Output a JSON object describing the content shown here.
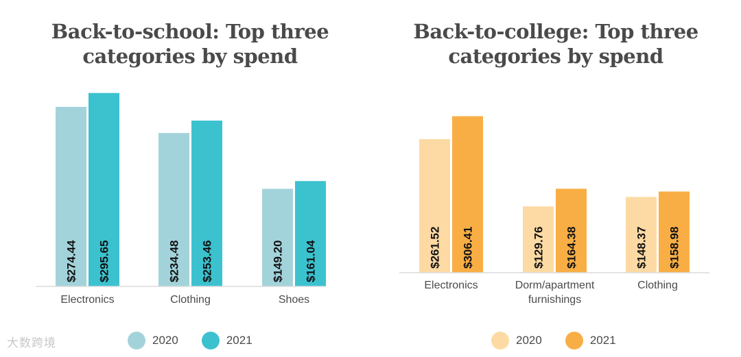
{
  "watermark": "大数跨境",
  "chart_data": [
    {
      "type": "bar",
      "title": "Back-to-school: Top three categories by spend",
      "categories": [
        "Electronics",
        "Clothing",
        "Shoes"
      ],
      "series": [
        {
          "name": "2020",
          "values": [
            274.44,
            234.48,
            149.2
          ],
          "labels": [
            "$274.44",
            "$234.48",
            "$149.20"
          ],
          "color": "#a3d3da"
        },
        {
          "name": "2021",
          "values": [
            295.65,
            253.46,
            161.04
          ],
          "labels": [
            "$295.65",
            "$253.46",
            "$161.04"
          ],
          "color": "#3cc2cf"
        }
      ],
      "ylim": [
        0,
        310
      ],
      "xlabel": "",
      "ylabel": "",
      "grid": false,
      "legend": "bottom"
    },
    {
      "type": "bar",
      "title": "Back-to-college: Top three categories by spend",
      "categories": [
        "Electronics",
        "Dorm/apartment furnishings",
        "Clothing"
      ],
      "series": [
        {
          "name": "2020",
          "values": [
            261.52,
            129.76,
            148.37
          ],
          "labels": [
            "$261.52",
            "$129.76",
            "$148.37"
          ],
          "color": "#fddaa3"
        },
        {
          "name": "2021",
          "values": [
            306.41,
            164.38,
            158.98
          ],
          "labels": [
            "$306.41",
            "$164.38",
            "$158.98"
          ],
          "color": "#f9ae45"
        }
      ],
      "ylim": [
        0,
        330
      ],
      "xlabel": "",
      "ylabel": "",
      "grid": false,
      "legend": "bottom"
    }
  ]
}
